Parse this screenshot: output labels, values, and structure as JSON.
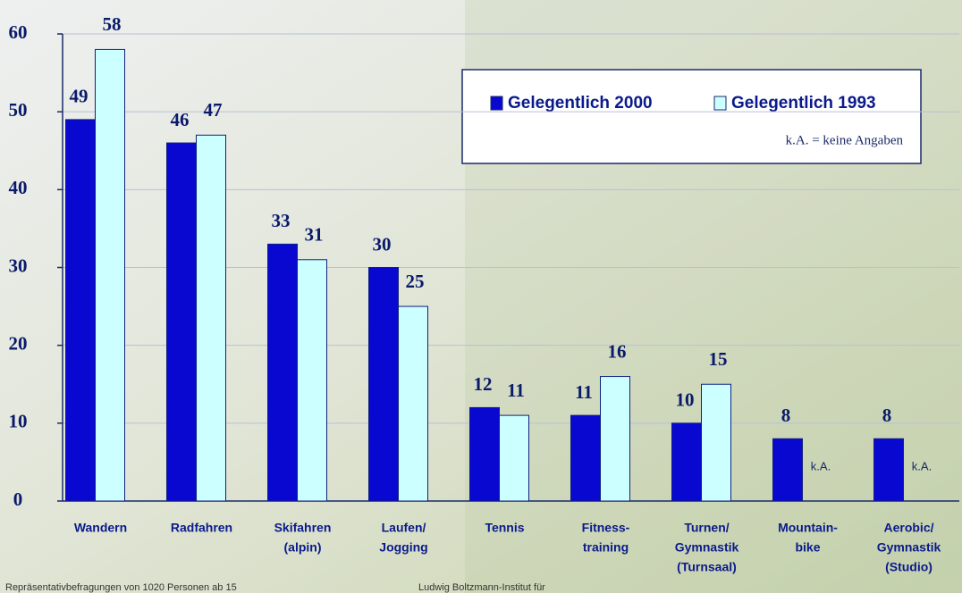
{
  "chart_data": {
    "type": "bar",
    "categories": [
      [
        "Wandern"
      ],
      [
        "Radfahren"
      ],
      [
        "Skifahren",
        "(alpin)"
      ],
      [
        "Laufen/",
        "Jogging"
      ],
      [
        "Tennis"
      ],
      [
        "Fitness-",
        "training"
      ],
      [
        "Turnen/",
        "Gymnastik",
        "(Turnsaal)"
      ],
      [
        "Mountain-",
        "bike"
      ],
      [
        "Aerobic/",
        "Gymnastik",
        "(Studio)"
      ]
    ],
    "series": [
      {
        "name": "Gelegentlich 2000",
        "color": "#0808d0",
        "values": [
          49,
          46,
          33,
          30,
          12,
          11,
          10,
          8,
          8
        ]
      },
      {
        "name": "Gelegentlich 1993",
        "color": "#ccffff",
        "values": [
          58,
          47,
          31,
          25,
          11,
          16,
          15,
          null,
          null
        ],
        "value_labels": [
          "58",
          "47",
          "31",
          "25",
          "11",
          "16",
          "15",
          "k.A.",
          "k.A."
        ]
      }
    ],
    "note": "k.A. = keine Angaben",
    "ylim": [
      0,
      60
    ],
    "yticks": [
      0,
      10,
      20,
      30,
      40,
      50,
      60
    ],
    "grid": true,
    "legend": "top-right",
    "source": [
      "Repräsentativbefragungen von 1020 Personen ab 15",
      "Ludwig Boltzmann-Institut für"
    ]
  }
}
